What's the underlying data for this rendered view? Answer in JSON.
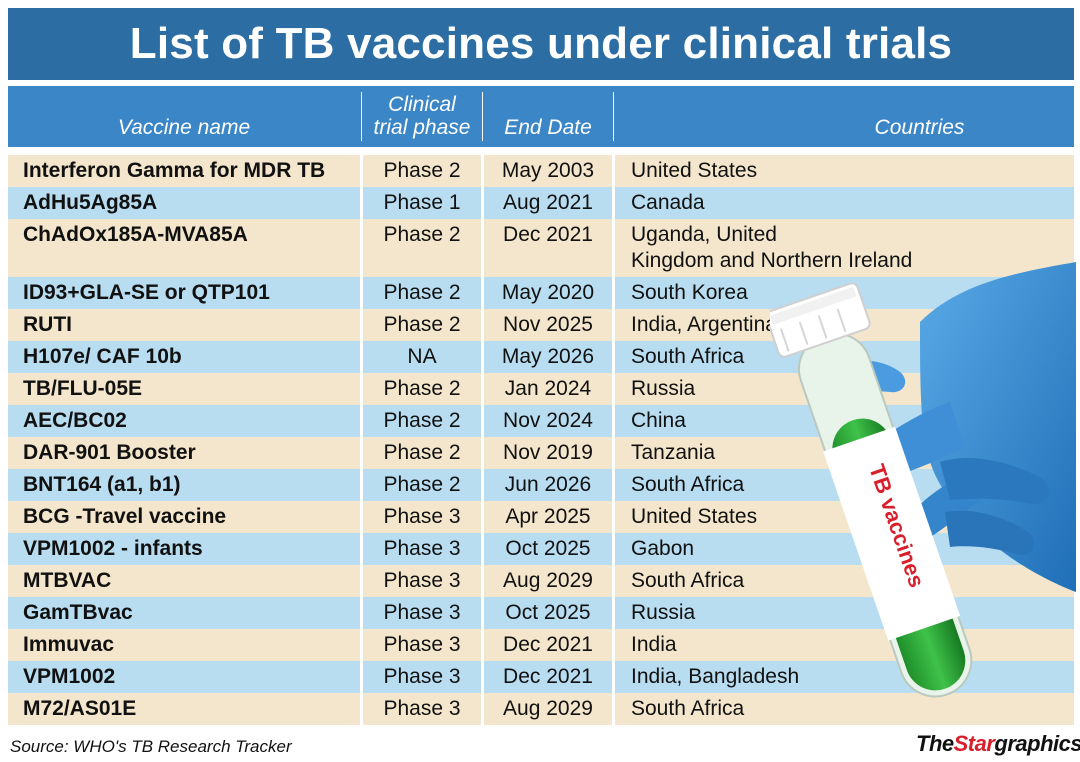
{
  "title": "List of TB vaccines under clinical trials",
  "headers": {
    "vaccine": "Vaccine name",
    "phase_line1": "Clinical",
    "phase_line2": "trial phase",
    "end_date": "End Date",
    "countries": "Countries"
  },
  "rows": [
    {
      "name": "Interferon Gamma for MDR TB",
      "phase": "Phase 2",
      "date": "May 2003",
      "country": "United States"
    },
    {
      "name": "AdHu5Ag85A",
      "phase": "Phase 1",
      "date": "Aug 2021",
      "country": "Canada"
    },
    {
      "name": "ChAdOx185A-MVA85A",
      "phase": "Phase 2",
      "date": "Dec 2021",
      "country_line1": "Uganda, United",
      "country_line2": "Kingdom and Northern Ireland"
    },
    {
      "name": "ID93+GLA-SE or QTP101",
      "phase": "Phase 2",
      "date": "May 2020",
      "country": "South Korea"
    },
    {
      "name": "RUTI",
      "phase": "Phase 2",
      "date": "Nov 2025",
      "country": "India, Argentina"
    },
    {
      "name": "H107e/ CAF 10b",
      "phase": "NA",
      "date": "May 2026",
      "country": "South Africa"
    },
    {
      "name": "TB/FLU-05E",
      "phase": "Phase 2",
      "date": "Jan 2024",
      "country": "Russia"
    },
    {
      "name": "AEC/BC02",
      "phase": "Phase 2",
      "date": "Nov 2024",
      "country": "China"
    },
    {
      "name": "DAR-901 Booster",
      "phase": "Phase 2",
      "date": "Nov 2019",
      "country": "Tanzania"
    },
    {
      "name": "BNT164 (a1, b1)",
      "phase": "Phase 2",
      "date": "Jun 2026",
      "country": "South Africa"
    },
    {
      "name": "BCG -Travel vaccine",
      "phase": "Phase 3",
      "date": "Apr 2025",
      "country": "United States"
    },
    {
      "name": "VPM1002 - infants",
      "phase": "Phase 3",
      "date": "Oct 2025",
      "country": "Gabon"
    },
    {
      "name": "MTBVAC",
      "phase": "Phase 3",
      "date": "Aug 2029",
      "country": "South Africa"
    },
    {
      "name": "GamTBvac",
      "phase": "Phase 3",
      "date": "Oct 2025",
      "country": "Russia"
    },
    {
      "name": "Immuvac",
      "phase": "Phase 3",
      "date": "Dec 2021",
      "country": "India"
    },
    {
      "name": "VPM1002",
      "phase": "Phase 3",
      "date": "Dec 2021",
      "country": "India, Bangladesh"
    },
    {
      "name": "M72/AS01E",
      "phase": "Phase 3",
      "date": "Aug 2029",
      "country": "South Africa"
    }
  ],
  "tube_label": "TB vaccines",
  "source": "Source:  WHO's TB Research Tracker",
  "logo": {
    "the": "The",
    "star": "Star",
    "graphics": "graphics"
  },
  "colors": {
    "title_bg": "#2c6ea3",
    "header_bg": "#3b86c6",
    "row_beige": "#f4e6cc",
    "row_blue": "#b8dcf0",
    "label_red": "#d8202a"
  }
}
